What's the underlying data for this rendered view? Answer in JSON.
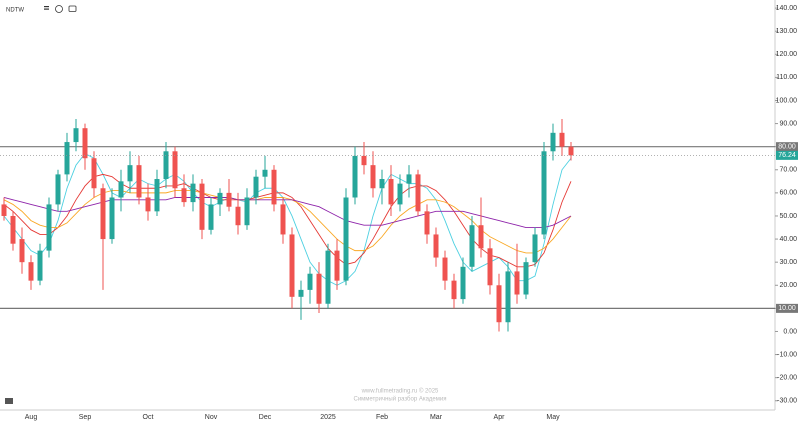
{
  "chart_data": {
    "type": "candlestick",
    "title": "NDTW",
    "categories": [
      null,
      null,
      null,
      "Aug",
      null,
      null,
      null,
      null,
      null,
      "Sep",
      null,
      null,
      null,
      null,
      null,
      null,
      "Oct",
      null,
      null,
      null,
      null,
      null,
      null,
      "Nov",
      null,
      null,
      null,
      null,
      null,
      "Dec",
      null,
      null,
      null,
      null,
      null,
      null,
      "2025",
      null,
      null,
      null,
      null,
      null,
      "Feb",
      null,
      null,
      null,
      null,
      null,
      "Mar",
      null,
      null,
      null,
      null,
      null,
      null,
      "Apr",
      null,
      null,
      null,
      null,
      null,
      "May",
      null,
      null
    ],
    "open": [
      55,
      50,
      40,
      30,
      22,
      35,
      55,
      68,
      82,
      88,
      75,
      62,
      40,
      58,
      65,
      72,
      58,
      52,
      66,
      78,
      62,
      56,
      64,
      44,
      55,
      60,
      54,
      46,
      58,
      67,
      70,
      55,
      42,
      15,
      18,
      25,
      12,
      35,
      22,
      58,
      76,
      72,
      62,
      66,
      55,
      64,
      68,
      52,
      42,
      32,
      22,
      14,
      28,
      46,
      36,
      20,
      4,
      26,
      16,
      30,
      42,
      78,
      86,
      80
    ],
    "high": [
      58,
      52,
      45,
      33,
      38,
      58,
      70,
      86,
      92,
      90,
      78,
      64,
      62,
      70,
      78,
      76,
      64,
      70,
      82,
      80,
      68,
      68,
      66,
      58,
      62,
      66,
      60,
      62,
      70,
      76,
      72,
      58,
      45,
      22,
      28,
      30,
      38,
      40,
      62,
      80,
      82,
      78,
      70,
      72,
      68,
      72,
      70,
      55,
      45,
      35,
      25,
      32,
      50,
      58,
      40,
      25,
      30,
      38,
      32,
      45,
      82,
      90,
      92,
      82
    ],
    "low": [
      48,
      35,
      25,
      18,
      20,
      32,
      52,
      65,
      78,
      70,
      58,
      18,
      38,
      52,
      60,
      55,
      48,
      50,
      62,
      58,
      54,
      52,
      40,
      42,
      50,
      52,
      42,
      44,
      55,
      62,
      52,
      38,
      10,
      5,
      12,
      8,
      10,
      18,
      20,
      55,
      68,
      58,
      55,
      50,
      52,
      58,
      50,
      38,
      28,
      18,
      10,
      12,
      26,
      32,
      16,
      0,
      0,
      12,
      14,
      28,
      40,
      74,
      76,
      74
    ],
    "close": [
      50,
      38,
      30,
      22,
      35,
      55,
      68,
      82,
      88,
      75,
      62,
      40,
      58,
      65,
      72,
      58,
      52,
      66,
      78,
      62,
      56,
      64,
      44,
      55,
      60,
      54,
      46,
      58,
      67,
      70,
      55,
      42,
      15,
      18,
      25,
      12,
      35,
      22,
      58,
      76,
      72,
      62,
      66,
      55,
      64,
      68,
      52,
      42,
      32,
      22,
      14,
      28,
      46,
      36,
      20,
      4,
      26,
      16,
      30,
      42,
      78,
      86,
      80,
      76.24
    ],
    "up_color": "#26a69a",
    "down_color": "#ef5350",
    "lines": [
      {
        "color": "#4dd0e1",
        "values": [
          50,
          45,
          40,
          35,
          33,
          38,
          48,
          62,
          72,
          77,
          75,
          68,
          60,
          58,
          62,
          66,
          64,
          63,
          66,
          68,
          65,
          60,
          56,
          54,
          56,
          58,
          57,
          56,
          60,
          62,
          62,
          58,
          50,
          40,
          30,
          25,
          22,
          20,
          22,
          26,
          35,
          50,
          62,
          68,
          66,
          64,
          64,
          62,
          57,
          48,
          38,
          30,
          26,
          28,
          30,
          32,
          28,
          22,
          22,
          24,
          38,
          55,
          70,
          75
        ]
      },
      {
        "color": "#e53935",
        "values": [
          55,
          52,
          48,
          44,
          42,
          42,
          45,
          50,
          57,
          63,
          67,
          68,
          67,
          64,
          62,
          62,
          62,
          62,
          63,
          63,
          64,
          62,
          60,
          58,
          57,
          57,
          57,
          57,
          58,
          59,
          60,
          60,
          58,
          54,
          48,
          42,
          36,
          32,
          29,
          30,
          34,
          40,
          47,
          54,
          59,
          62,
          63,
          63,
          61,
          57,
          52,
          46,
          40,
          36,
          33,
          32,
          30,
          28,
          28,
          29,
          34,
          44,
          56,
          65
        ]
      },
      {
        "color": "#f9a825",
        "values": [
          57,
          55,
          52,
          48,
          46,
          45,
          45,
          47,
          51,
          55,
          58,
          60,
          61,
          61,
          60,
          60,
          60,
          60,
          60,
          61,
          61,
          61,
          60,
          59,
          58,
          58,
          57,
          57,
          57,
          58,
          58,
          58,
          57,
          55,
          52,
          48,
          44,
          40,
          37,
          35,
          35,
          37,
          41,
          46,
          50,
          53,
          55,
          57,
          57,
          56,
          54,
          51,
          48,
          44,
          41,
          39,
          37,
          35,
          34,
          34,
          36,
          40,
          45,
          50
        ]
      },
      {
        "color": "#8e24aa",
        "values": [
          58,
          57,
          56,
          55,
          54,
          53,
          52,
          52,
          53,
          54,
          55,
          56,
          57,
          57,
          57,
          57,
          57,
          57,
          57,
          58,
          58,
          58,
          58,
          58,
          58,
          58,
          57,
          57,
          57,
          57,
          57,
          57,
          57,
          56,
          55,
          54,
          52,
          50,
          48,
          47,
          46,
          46,
          46,
          47,
          48,
          49,
          50,
          51,
          52,
          52,
          52,
          52,
          51,
          50,
          49,
          48,
          47,
          46,
          45,
          45,
          45,
          46,
          48,
          50
        ]
      }
    ],
    "hlines": [
      {
        "value": 80,
        "label": "80.00"
      },
      {
        "value": 10,
        "label": "10.00"
      }
    ],
    "last": {
      "value": 76.24,
      "label": "76.24"
    },
    "ylim": [
      -34,
      143.5
    ],
    "yticks": [
      {
        "value": -30,
        "label": "-30.00"
      },
      {
        "value": -20,
        "label": "-20.00"
      },
      {
        "value": -10,
        "label": "-10.00"
      },
      {
        "value": 0,
        "label": "0.00"
      },
      {
        "value": 10,
        "label": "10.00"
      },
      {
        "value": 20,
        "label": "20.00"
      },
      {
        "value": 30,
        "label": "30.00"
      },
      {
        "value": 40,
        "label": "40.00"
      },
      {
        "value": 50,
        "label": "50.00"
      },
      {
        "value": 60,
        "label": "60.00"
      },
      {
        "value": 70,
        "label": "70.00"
      },
      {
        "value": 80,
        "label": "80.00"
      },
      {
        "value": 90,
        "label": "90.00"
      },
      {
        "value": 100,
        "label": "100.00"
      },
      {
        "value": 110,
        "label": "110.00"
      },
      {
        "value": 120,
        "label": "120.00"
      },
      {
        "value": 130,
        "label": "130.00"
      },
      {
        "value": 140,
        "label": "140.00"
      }
    ],
    "grid": false,
    "annotations": [
      "www.fullmetrading.ru © 2025",
      "Симметричный разбор Академия"
    ]
  }
}
